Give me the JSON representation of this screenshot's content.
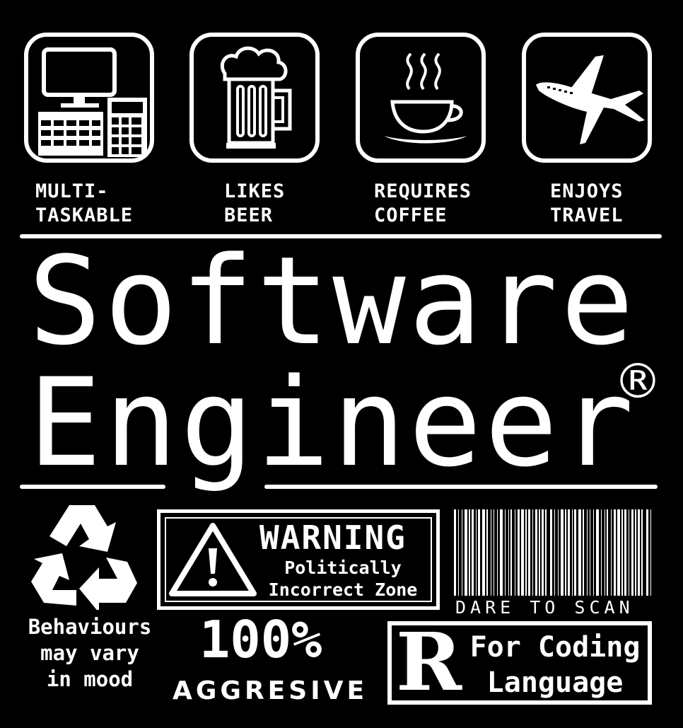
{
  "traits": [
    {
      "icon": "computer-calculator-icon",
      "line1": "MULTI-",
      "line2": "TASKABLE"
    },
    {
      "icon": "beer-mug-icon",
      "line1": "LIKES",
      "line2": "BEER"
    },
    {
      "icon": "coffee-cup-icon",
      "line1": "REQUIRES",
      "line2": "COFFEE"
    },
    {
      "icon": "airplane-icon",
      "line1": "ENJOYS",
      "line2": "TRAVEL"
    }
  ],
  "title": {
    "line1": "Software",
    "line2": "Engineer",
    "mark": "®"
  },
  "recycle": {
    "icon": "recycle-icon",
    "line1": "Behaviours",
    "line2": "may vary",
    "line3": "in mood"
  },
  "warning": {
    "icon": "warning-triangle-icon",
    "heading": "WARNING",
    "line1": "Politically",
    "line2": "Incorrect Zone"
  },
  "barcode": {
    "icon": "barcode-icon",
    "caption": "DARE TO SCAN"
  },
  "aggressive": {
    "value": "100%",
    "label": "AGGRESIVE"
  },
  "rating": {
    "letter": "R",
    "line1": "For Coding",
    "line2": "Language"
  },
  "colors": {
    "background": "#000000",
    "foreground": "#ffffff"
  }
}
